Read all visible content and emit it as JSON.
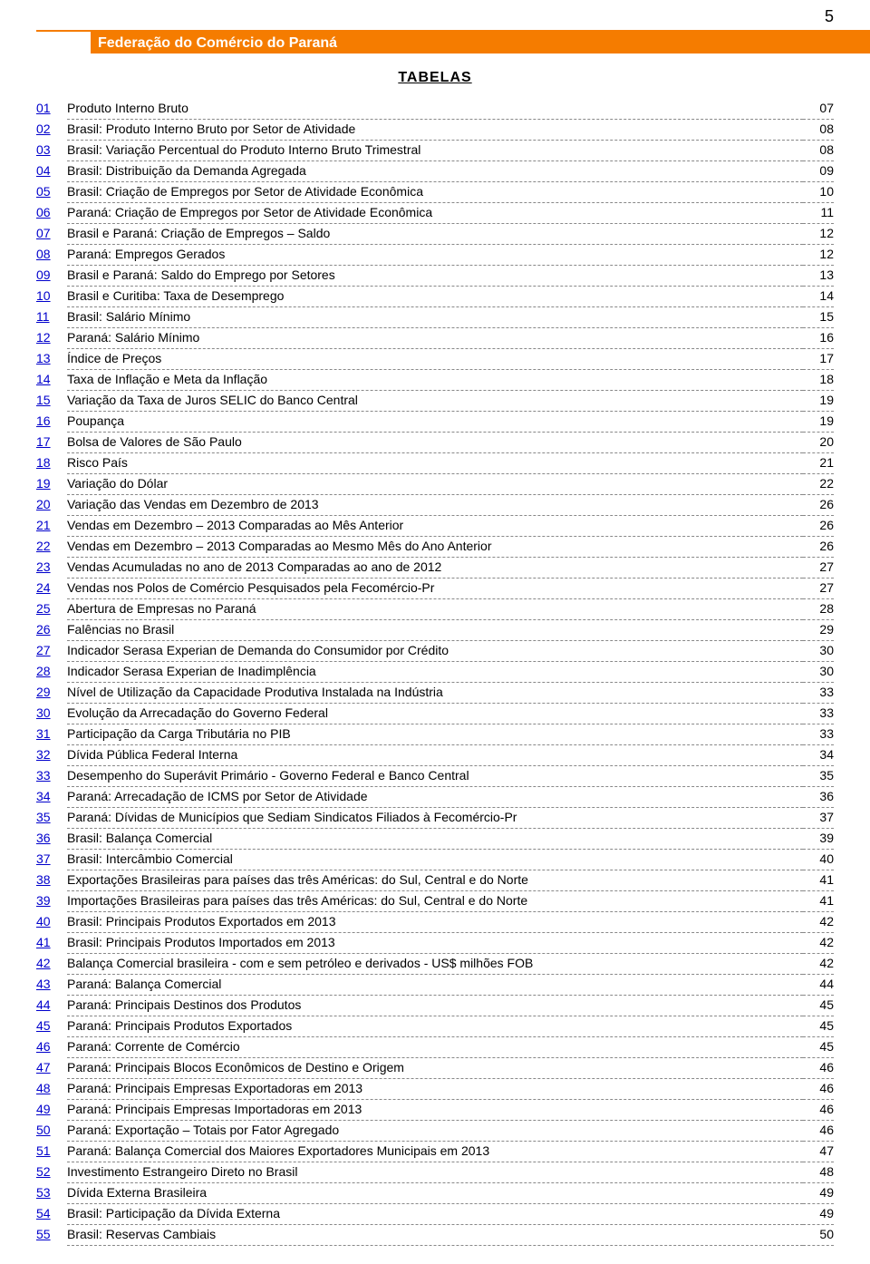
{
  "page_number": "5",
  "header": "Federação do Comércio do Paraná",
  "title": "TABELAS",
  "colors": {
    "accent": "#f57c00",
    "link": "#0000cc",
    "text": "#000000",
    "bg": "#ffffff"
  },
  "toc": [
    {
      "n": "01",
      "d": "Produto Interno Bruto",
      "p": "07"
    },
    {
      "n": "02",
      "d": "Brasil: Produto Interno Bruto por Setor de Atividade",
      "p": "08"
    },
    {
      "n": "03",
      "d": "Brasil: Variação Percentual do Produto Interno Bruto Trimestral",
      "p": "08"
    },
    {
      "n": "04",
      "d": "Brasil: Distribuição da Demanda Agregada",
      "p": "09"
    },
    {
      "n": "05",
      "d": "Brasil: Criação de Empregos por Setor de Atividade Econômica",
      "p": "10"
    },
    {
      "n": "06",
      "d": "Paraná: Criação de Empregos por Setor de Atividade Econômica",
      "p": "11"
    },
    {
      "n": "07",
      "d": "Brasil e Paraná: Criação de Empregos – Saldo",
      "p": "12"
    },
    {
      "n": "08",
      "d": "Paraná: Empregos Gerados",
      "p": "12"
    },
    {
      "n": "09",
      "d": "Brasil e Paraná: Saldo do Emprego por Setores",
      "p": "13"
    },
    {
      "n": "10",
      "d": "Brasil e Curitiba: Taxa de Desemprego",
      "p": "14"
    },
    {
      "n": "11",
      "d": "Brasil: Salário Mínimo",
      "p": "15"
    },
    {
      "n": "12",
      "d": "Paraná: Salário Mínimo",
      "p": "16"
    },
    {
      "n": "13",
      "d": "Índice de Preços",
      "p": "17"
    },
    {
      "n": "14",
      "d": "Taxa de Inflação e Meta da Inflação",
      "p": "18"
    },
    {
      "n": "15",
      "d": "Variação da Taxa de Juros SELIC do Banco Central",
      "p": "19"
    },
    {
      "n": "16",
      "d": "Poupança",
      "p": "19"
    },
    {
      "n": "17",
      "d": "Bolsa de Valores de São Paulo",
      "p": "20"
    },
    {
      "n": "18",
      "d": "Risco País",
      "p": "21"
    },
    {
      "n": "19",
      "d": "Variação do Dólar",
      "p": "22"
    },
    {
      "n": "20",
      "d": "Variação das Vendas em Dezembro de 2013",
      "p": "26"
    },
    {
      "n": "21",
      "d": "Vendas em Dezembro – 2013 Comparadas ao Mês Anterior",
      "p": "26"
    },
    {
      "n": "22",
      "d": "Vendas em Dezembro – 2013 Comparadas ao Mesmo Mês do Ano Anterior",
      "p": "26"
    },
    {
      "n": "23",
      "d": "Vendas Acumuladas no ano de 2013 Comparadas ao ano de 2012",
      "p": "27"
    },
    {
      "n": "24",
      "d": "Vendas nos Polos de Comércio Pesquisados pela Fecomércio-Pr",
      "p": "27"
    },
    {
      "n": "25",
      "d": "Abertura de Empresas no Paraná",
      "p": "28"
    },
    {
      "n": "26",
      "d": "Falências no Brasil",
      "p": "29"
    },
    {
      "n": "27",
      "d": "Indicador Serasa Experian de Demanda do Consumidor por Crédito",
      "p": "30"
    },
    {
      "n": "28",
      "d": "Indicador Serasa Experian de Inadimplência",
      "p": "30"
    },
    {
      "n": "29",
      "d": "Nível de Utilização da Capacidade Produtiva Instalada na Indústria",
      "p": "33"
    },
    {
      "n": "30",
      "d": "Evolução da Arrecadação do Governo Federal",
      "p": "33"
    },
    {
      "n": "31",
      "d": "Participação da Carga Tributária no PIB",
      "p": "33"
    },
    {
      "n": "32",
      "d": "Dívida Pública Federal Interna",
      "p": "34"
    },
    {
      "n": "33",
      "d": "Desempenho do Superávit Primário - Governo Federal e Banco Central",
      "p": "35"
    },
    {
      "n": "34",
      "d": "Paraná: Arrecadação de ICMS por Setor de Atividade",
      "p": "36"
    },
    {
      "n": "35",
      "d": "Paraná: Dívidas de Municípios que Sediam Sindicatos Filiados à Fecomércio-Pr",
      "p": "37"
    },
    {
      "n": "36",
      "d": "Brasil: Balança Comercial",
      "p": "39"
    },
    {
      "n": "37",
      "d": "Brasil: Intercâmbio Comercial",
      "p": "40"
    },
    {
      "n": "38",
      "d": "Exportações Brasileiras para países das três Américas: do Sul, Central e do Norte",
      "p": "41"
    },
    {
      "n": "39",
      "d": "Importações Brasileiras para países das três Américas: do Sul, Central e do Norte",
      "p": "41"
    },
    {
      "n": "40",
      "d": "Brasil: Principais Produtos Exportados em 2013",
      "p": "42"
    },
    {
      "n": "41",
      "d": "Brasil: Principais Produtos Importados em 2013",
      "p": "42"
    },
    {
      "n": "42",
      "d": "Balança Comercial brasileira - com e sem petróleo e derivados - US$ milhões FOB",
      "p": "42"
    },
    {
      "n": "43",
      "d": "Paraná: Balança Comercial",
      "p": "44"
    },
    {
      "n": "44",
      "d": "Paraná: Principais Destinos dos Produtos",
      "p": "45"
    },
    {
      "n": "45",
      "d": "Paraná: Principais Produtos Exportados",
      "p": "45"
    },
    {
      "n": "46",
      "d": "Paraná: Corrente de Comércio",
      "p": "45"
    },
    {
      "n": "47",
      "d": "Paraná: Principais Blocos Econômicos de Destino e Origem",
      "p": "46"
    },
    {
      "n": "48",
      "d": "Paraná: Principais Empresas Exportadoras em 2013",
      "p": "46"
    },
    {
      "n": "49",
      "d": "Paraná: Principais Empresas Importadoras em 2013",
      "p": "46"
    },
    {
      "n": "50",
      "d": "Paraná: Exportação – Totais por Fator Agregado",
      "p": "46"
    },
    {
      "n": "51",
      "d": "Paraná: Balança Comercial dos Maiores Exportadores Municipais em 2013",
      "p": "47"
    },
    {
      "n": "52",
      "d": "Investimento Estrangeiro Direto no Brasil",
      "p": "48"
    },
    {
      "n": "53",
      "d": "Dívida Externa Brasileira",
      "p": "49"
    },
    {
      "n": "54",
      "d": "Brasil: Participação da Dívida Externa",
      "p": "49"
    },
    {
      "n": "55",
      "d": "Brasil: Reservas Cambiais",
      "p": "50"
    }
  ]
}
